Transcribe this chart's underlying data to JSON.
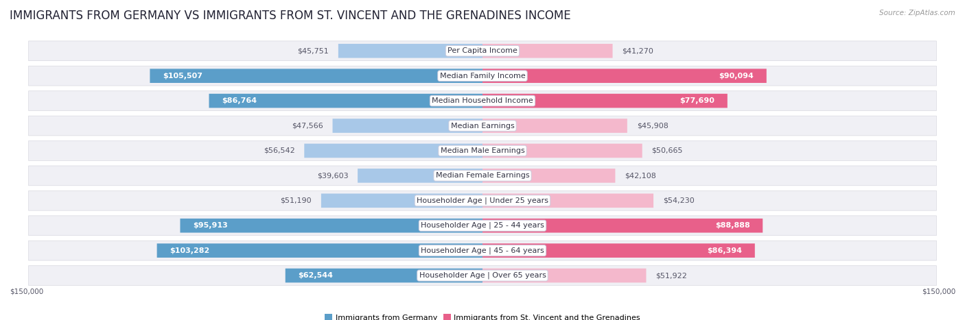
{
  "title": "IMMIGRANTS FROM GERMANY VS IMMIGRANTS FROM ST. VINCENT AND THE GRENADINES INCOME",
  "source": "Source: ZipAtlas.com",
  "categories": [
    "Per Capita Income",
    "Median Family Income",
    "Median Household Income",
    "Median Earnings",
    "Median Male Earnings",
    "Median Female Earnings",
    "Householder Age | Under 25 years",
    "Householder Age | 25 - 44 years",
    "Householder Age | 45 - 64 years",
    "Householder Age | Over 65 years"
  ],
  "germany_values": [
    45751,
    105507,
    86764,
    47566,
    56542,
    39603,
    51190,
    95913,
    103282,
    62544
  ],
  "svg_values": [
    41270,
    90094,
    77690,
    45908,
    50665,
    42108,
    54230,
    88888,
    86394,
    51922
  ],
  "germany_labels": [
    "$45,751",
    "$105,507",
    "$86,764",
    "$47,566",
    "$56,542",
    "$39,603",
    "$51,190",
    "$95,913",
    "$103,282",
    "$62,544"
  ],
  "svg_labels": [
    "$41,270",
    "$90,094",
    "$77,690",
    "$45,908",
    "$50,665",
    "$42,108",
    "$54,230",
    "$88,888",
    "$86,394",
    "$51,922"
  ],
  "germany_color_light": "#a8c8e8",
  "germany_color_dark": "#5b9ec9",
  "svg_color_light": "#f4b8cc",
  "svg_color_dark": "#e8608a",
  "max_value": 150000,
  "legend_germany": "Immigrants from Germany",
  "legend_svg": "Immigrants from St. Vincent and the Grenadines",
  "axis_label_left": "$150,000",
  "axis_label_right": "$150,000",
  "bg_color": "#ffffff",
  "row_bg": "#f0f0f5",
  "title_fontsize": 12,
  "label_fontsize": 8,
  "category_fontsize": 8,
  "inside_label_threshold": 60000
}
